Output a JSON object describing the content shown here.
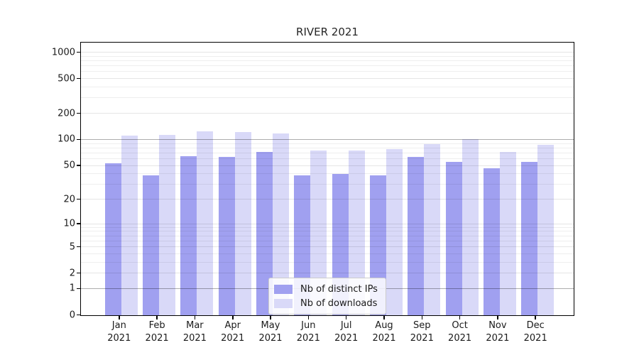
{
  "chart_data": {
    "type": "bar",
    "title": "RIVER 2021",
    "categories": [
      "Jan 2021",
      "Feb 2021",
      "Mar 2021",
      "Apr 2021",
      "May 2021",
      "Jun 2021",
      "Jul 2021",
      "Aug 2021",
      "Sep 2021",
      "Oct 2021",
      "Nov 2021",
      "Dec 2021"
    ],
    "series": [
      {
        "name": "Nb of distinct IPs",
        "color": "#a0a0f0",
        "values": [
          53,
          39,
          65,
          64,
          72,
          39,
          40,
          39,
          63,
          56,
          47,
          55
        ]
      },
      {
        "name": "Nb of downloads",
        "color": "#d9d9f8",
        "values": [
          112,
          113,
          126,
          123,
          119,
          75,
          75,
          78,
          90,
          102,
          72,
          88
        ]
      }
    ],
    "y_axis": {
      "scale": "log1p",
      "ticks": [
        0,
        1,
        2,
        5,
        10,
        20,
        50,
        100,
        200,
        500,
        1000
      ],
      "strong_gridlines": [
        1,
        100
      ],
      "ylim": [
        0,
        1270
      ]
    },
    "grid": "both",
    "legend": {
      "position": "lower-center-inside",
      "entries": [
        "Nb of distinct IPs",
        "Nb of downloads"
      ]
    }
  }
}
